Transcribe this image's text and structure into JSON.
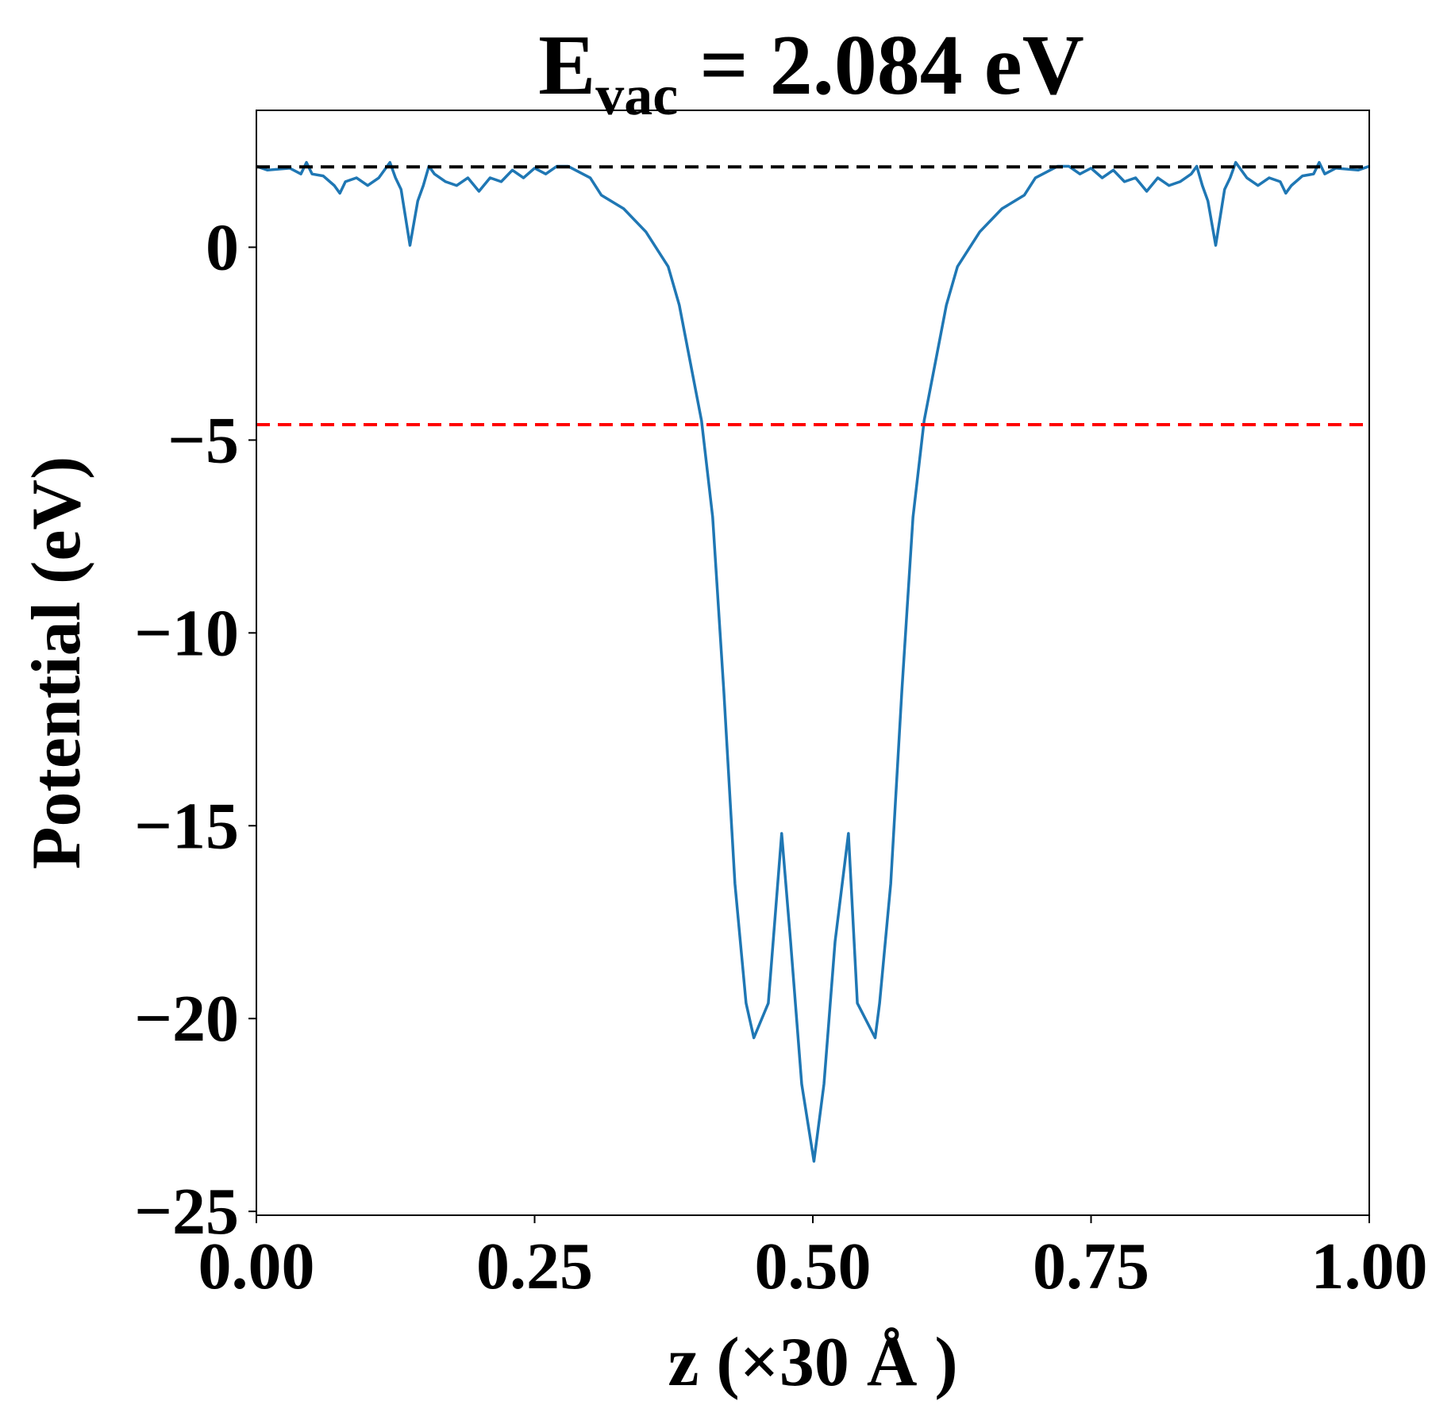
{
  "chart_data": {
    "type": "line",
    "title_parts": [
      "E",
      "vac",
      " = 2.084 eV"
    ],
    "xlabel": "z (×30 Å )",
    "ylabel": "Potential (eV)",
    "xlim": [
      0,
      1
    ],
    "ylim": [
      -25.1,
      3.55
    ],
    "xticks": [
      {
        "value": 0,
        "label": "0.00"
      },
      {
        "value": 0.25,
        "label": "0.25"
      },
      {
        "value": 0.5,
        "label": "0.50"
      },
      {
        "value": 0.75,
        "label": "0.75"
      },
      {
        "value": 1,
        "label": "1.00"
      }
    ],
    "yticks": [
      0,
      {
        "value": -5,
        "label": "−5"
      },
      {
        "value": -10,
        "label": "−10"
      },
      {
        "value": -15,
        "label": "−15"
      },
      {
        "value": -20,
        "label": "−20"
      },
      {
        "value": -25,
        "label": "−25"
      }
    ],
    "hlines": [
      {
        "value": 2.084,
        "color": "#000000"
      },
      {
        "value": -4.6,
        "color": "#ff0000"
      }
    ],
    "series": [
      {
        "color": "#1f77b4",
        "x": [
          0,
          0.01,
          0.03,
          0.04,
          0.045,
          0.05,
          0.06,
          0.07,
          0.075,
          0.08,
          0.09,
          0.1,
          0.11,
          0.12,
          0.125,
          0.13,
          0.138,
          0.145,
          0.15,
          0.155,
          0.16,
          0.17,
          0.18,
          0.19,
          0.2,
          0.21,
          0.22,
          0.23,
          0.24,
          0.25,
          0.26,
          0.27,
          0.28,
          0.3,
          0.31,
          0.33,
          0.35,
          0.37,
          0.38,
          0.39,
          0.4,
          0.41,
          0.42,
          0.43,
          0.44,
          0.447,
          0.46,
          0.472,
          0.48,
          0.49,
          0.501,
          0.51,
          0.52,
          0.532,
          0.54,
          0.556,
          0.56,
          0.57,
          0.58,
          0.59,
          0.6,
          0.61,
          0.62,
          0.63,
          0.65,
          0.67,
          0.69,
          0.7,
          0.72,
          0.73,
          0.74,
          0.75,
          0.76,
          0.77,
          0.78,
          0.79,
          0.8,
          0.81,
          0.82,
          0.83,
          0.84,
          0.845,
          0.85,
          0.855,
          0.862,
          0.87,
          0.875,
          0.88,
          0.89,
          0.9,
          0.91,
          0.92,
          0.925,
          0.93,
          0.94,
          0.95,
          0.955,
          0.96,
          0.97,
          0.99,
          1
        ],
        "values": [
          2.1,
          2.0,
          2.05,
          1.9,
          2.2,
          1.9,
          1.85,
          1.6,
          1.4,
          1.7,
          1.8,
          1.6,
          1.8,
          2.2,
          1.8,
          1.5,
          0.05,
          1.2,
          1.6,
          2.1,
          1.9,
          1.7,
          1.6,
          1.8,
          1.45,
          1.8,
          1.7,
          2.0,
          1.8,
          2.05,
          1.9,
          2.1,
          2.1,
          1.8,
          1.35,
          1.0,
          0.4,
          -0.5,
          -1.5,
          -3.0,
          -4.5,
          -7.0,
          -11.5,
          -16.5,
          -19.6,
          -20.5,
          -19.6,
          -15.2,
          -18,
          -21.7,
          -23.7,
          -21.7,
          -18,
          -15.2,
          -19.6,
          -20.5,
          -19.6,
          -16.5,
          -11.5,
          -7.0,
          -4.5,
          -3.0,
          -1.5,
          -0.5,
          0.4,
          1.0,
          1.35,
          1.8,
          2.1,
          2.1,
          1.9,
          2.05,
          1.8,
          2.0,
          1.7,
          1.8,
          1.45,
          1.8,
          1.6,
          1.7,
          1.9,
          2.1,
          1.6,
          1.2,
          0.05,
          1.5,
          1.8,
          2.2,
          1.8,
          1.6,
          1.8,
          1.7,
          1.4,
          1.6,
          1.85,
          1.9,
          2.2,
          1.9,
          2.05,
          2.0,
          2.1
        ]
      }
    ]
  }
}
